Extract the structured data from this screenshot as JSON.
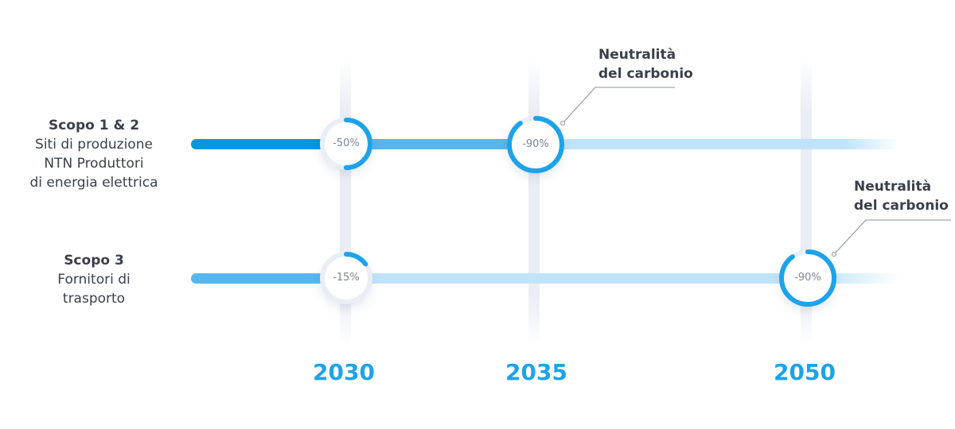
{
  "rows": [
    {
      "title": "Scopo 1 & 2",
      "lines": [
        "Siti di produzione",
        "NTN Produttori",
        "di energia elettrica"
      ]
    },
    {
      "title": "Scopo 3",
      "lines": [
        "Fornitori di",
        "trasporto"
      ]
    }
  ],
  "years": [
    "2030",
    "2035",
    "2050"
  ],
  "milestones": {
    "r1_2030": {
      "label": "-50%",
      "reduction": 50
    },
    "r1_2035": {
      "label": "-90%",
      "reduction": 90
    },
    "r2_2030": {
      "label": "-15%",
      "reduction": 15
    },
    "r2_2050": {
      "label": "-90%",
      "reduction": 90
    }
  },
  "annotations": {
    "top": [
      "Neutralità",
      "del carbonio"
    ],
    "bottom": [
      "Neutralità",
      "del carbonio"
    ]
  },
  "colors": {
    "accent": "#1ca3ea",
    "track_dark": "#0a95e0",
    "track_mid": "#56b6ee",
    "track_light": "#bfe4fa",
    "year_text": "#1ca3ea"
  }
}
